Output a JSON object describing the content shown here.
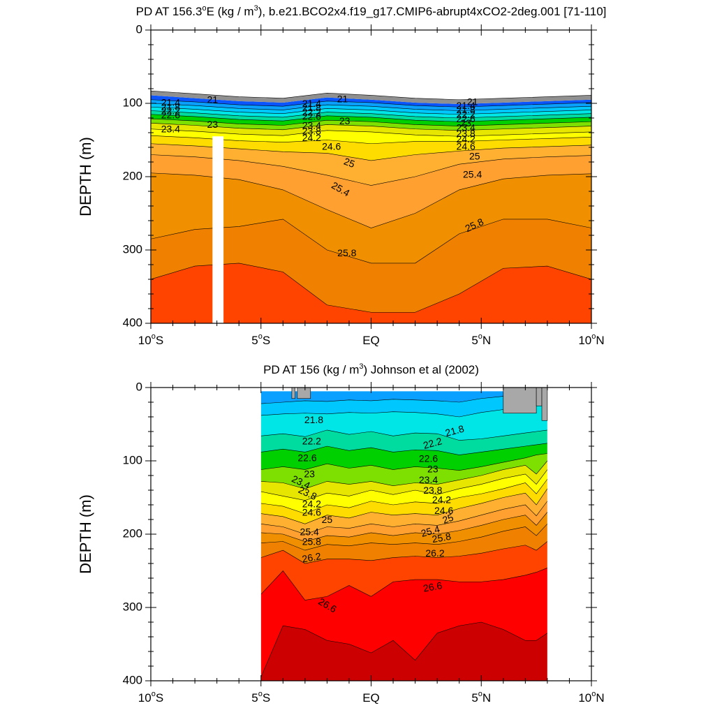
{
  "chart_data": [
    {
      "type": "contour",
      "title_parts": [
        "PD AT 156.3",
        "o",
        "E (kg / m",
        "3",
        "), b.e21.BCO2x4.f19_g17.CMIP6-abrupt4xCO2-2deg.001 [71-110]"
      ],
      "ylabel": "DEPTH (m)",
      "xlabel": "",
      "xlim": [
        -10,
        10
      ],
      "ylim": [
        400,
        0
      ],
      "y_inverted": true,
      "y_ticks": [
        "0",
        "100",
        "200",
        "300",
        "400"
      ],
      "x_ticks": [
        {
          "pos": -10,
          "main": "10",
          "sup": "o",
          "tail": "S"
        },
        {
          "pos": -5,
          "main": "5",
          "sup": "o",
          "tail": "S"
        },
        {
          "pos": 0,
          "main": "EQ",
          "sup": "",
          "tail": ""
        },
        {
          "pos": 5,
          "main": "5",
          "sup": "o",
          "tail": "N"
        },
        {
          "pos": 10,
          "main": "10",
          "sup": "o",
          "tail": "N"
        }
      ],
      "x": [
        -10,
        -8,
        -6,
        -4,
        -2,
        0,
        2,
        4,
        6,
        8,
        10
      ],
      "surface_depth": [
        89,
        93,
        97,
        99,
        92,
        95,
        99,
        101,
        99,
        97,
        95
      ],
      "missing_column_x": [
        -7.2,
        -6.7
      ],
      "missing_column_top_depth": 145,
      "contours": [
        {
          "level": 21.0,
          "depth": [
            95,
            98,
            102,
            104,
            97,
            99,
            103,
            105,
            103,
            101,
            99
          ]
        },
        {
          "level": 21.4,
          "depth": [
            100,
            103,
            107,
            109,
            102,
            104,
            108,
            110,
            108,
            106,
            104
          ]
        },
        {
          "level": 21.8,
          "depth": [
            105,
            108,
            112,
            114,
            107,
            109,
            113,
            115,
            113,
            111,
            109
          ]
        },
        {
          "level": 22.2,
          "depth": [
            110,
            113,
            117,
            119,
            112,
            114,
            118,
            120,
            118,
            116,
            114
          ]
        },
        {
          "level": 22.6,
          "depth": [
            115,
            118,
            122,
            124,
            117,
            119,
            123,
            125,
            123,
            121,
            119
          ]
        },
        {
          "level": 23.0,
          "depth": [
            121,
            124,
            128,
            130,
            123,
            125,
            129,
            131,
            129,
            127,
            125
          ]
        },
        {
          "level": 23.4,
          "depth": [
            127,
            130,
            134,
            136,
            129,
            131,
            135,
            137,
            135,
            133,
            131
          ]
        },
        {
          "level": 23.8,
          "depth": [
            135,
            138,
            142,
            144,
            137,
            139,
            143,
            145,
            143,
            141,
            139
          ]
        },
        {
          "level": 24.2,
          "depth": [
            144,
            147,
            151,
            153,
            150,
            155,
            152,
            152,
            150,
            148,
            146
          ]
        },
        {
          "level": 24.6,
          "depth": [
            155,
            158,
            162,
            166,
            168,
            178,
            170,
            165,
            161,
            159,
            157
          ]
        },
        {
          "level": 25.0,
          "depth": [
            170,
            173,
            178,
            186,
            198,
            212,
            200,
            183,
            176,
            173,
            171
          ]
        },
        {
          "level": 25.4,
          "depth": [
            195,
            198,
            204,
            218,
            245,
            270,
            250,
            218,
            203,
            198,
            196
          ]
        },
        {
          "level": 25.8,
          "depth": [
            285,
            272,
            268,
            258,
            300,
            318,
            318,
            278,
            258,
            258,
            270
          ]
        },
        {
          "level": 26.2,
          "depth": [
            340,
            322,
            318,
            330,
            375,
            385,
            385,
            360,
            325,
            322,
            340
          ]
        }
      ],
      "labels": [
        {
          "text": "21",
          "x": -7.2,
          "d": 96,
          "rot": 0
        },
        {
          "text": "21.4",
          "x": -9.1,
          "d": 100,
          "rot": 0
        },
        {
          "text": "21.8",
          "x": -9.1,
          "d": 106,
          "rot": 0
        },
        {
          "text": "22.2",
          "x": -9.1,
          "d": 111,
          "rot": 0
        },
        {
          "text": "22.6",
          "x": -9.1,
          "d": 117,
          "rot": 0
        },
        {
          "text": "23",
          "x": -7.2,
          "d": 130,
          "rot": 0
        },
        {
          "text": "23.4",
          "x": -9.1,
          "d": 136,
          "rot": 0
        },
        {
          "text": "21",
          "x": -1.3,
          "d": 95,
          "rot": 0
        },
        {
          "text": "21.4",
          "x": -2.7,
          "d": 101,
          "rot": 0
        },
        {
          "text": "21.8",
          "x": -2.7,
          "d": 107,
          "rot": 0
        },
        {
          "text": "22.2",
          "x": -2.7,
          "d": 113,
          "rot": 0
        },
        {
          "text": "22.6",
          "x": -2.7,
          "d": 119,
          "rot": 0
        },
        {
          "text": "23",
          "x": -1.2,
          "d": 125,
          "rot": 0
        },
        {
          "text": "23.4",
          "x": -2.7,
          "d": 131,
          "rot": 0
        },
        {
          "text": "23.8",
          "x": -2.7,
          "d": 139,
          "rot": 0
        },
        {
          "text": "24.2",
          "x": -2.7,
          "d": 148,
          "rot": 0
        },
        {
          "text": "24.6",
          "x": -1.8,
          "d": 160,
          "rot": 0
        },
        {
          "text": "25",
          "x": -1.0,
          "d": 182,
          "rot": 20
        },
        {
          "text": "25.4",
          "x": -1.4,
          "d": 218,
          "rot": 30
        },
        {
          "text": "25.8",
          "x": -1.1,
          "d": 305,
          "rot": 0
        },
        {
          "text": "21",
          "x": 4.6,
          "d": 99,
          "rot": 0
        },
        {
          "text": "21.4",
          "x": 4.3,
          "d": 104,
          "rot": 0
        },
        {
          "text": "21.8",
          "x": 4.3,
          "d": 110,
          "rot": 0
        },
        {
          "text": "22.2",
          "x": 4.3,
          "d": 116,
          "rot": 0
        },
        {
          "text": "22.6",
          "x": 4.3,
          "d": 122,
          "rot": 0
        },
        {
          "text": "23",
          "x": 4.3,
          "d": 128,
          "rot": 0
        },
        {
          "text": "23.4",
          "x": 4.3,
          "d": 134,
          "rot": 0
        },
        {
          "text": "23.8",
          "x": 4.3,
          "d": 142,
          "rot": 0
        },
        {
          "text": "24.2",
          "x": 4.3,
          "d": 150,
          "rot": 0
        },
        {
          "text": "24.6",
          "x": 4.3,
          "d": 160,
          "rot": 0
        },
        {
          "text": "25",
          "x": 4.7,
          "d": 173,
          "rot": 0
        },
        {
          "text": "25.4",
          "x": 4.6,
          "d": 198,
          "rot": 0
        },
        {
          "text": "25.8",
          "x": 4.7,
          "d": 267,
          "rot": -25
        }
      ]
    },
    {
      "type": "contour",
      "title_parts": [
        "PD AT 156 (kg / m",
        "3",
        ") Johnson et al (2002)"
      ],
      "ylabel": "DEPTH (m)",
      "xlabel": "",
      "xlim": [
        -10,
        10
      ],
      "ylim": [
        400,
        0
      ],
      "y_inverted": true,
      "y_ticks": [
        "0",
        "100",
        "200",
        "300",
        "400"
      ],
      "x_ticks": [
        {
          "pos": -10,
          "main": "10",
          "sup": "o",
          "tail": "S"
        },
        {
          "pos": -5,
          "main": "5",
          "sup": "o",
          "tail": "S"
        },
        {
          "pos": 0,
          "main": "EQ",
          "sup": "",
          "tail": ""
        },
        {
          "pos": 5,
          "main": "5",
          "sup": "o",
          "tail": "N"
        },
        {
          "pos": 10,
          "main": "10",
          "sup": "o",
          "tail": "N"
        }
      ],
      "data_xlim": [
        -5,
        8
      ],
      "data_top_depth": 5,
      "x": [
        -5,
        -4,
        -3,
        -2,
        -1,
        0,
        1,
        2,
        3,
        4,
        5,
        6,
        7,
        7.5,
        8
      ],
      "contours": [
        {
          "level": 21.4,
          "depth": [
            22,
            20,
            18,
            19,
            17,
            18,
            16,
            17,
            18,
            20,
            15,
            12,
            10,
            8,
            6
          ]
        },
        {
          "level": 21.8,
          "depth": [
            38,
            36,
            35,
            36,
            34,
            35,
            33,
            34,
            36,
            40,
            34,
            30,
            25,
            22,
            20
          ]
        },
        {
          "level": 22.2,
          "depth": [
            66,
            63,
            67,
            58,
            64,
            60,
            66,
            62,
            63,
            72,
            70,
            66,
            62,
            60,
            58
          ]
        },
        {
          "level": 22.6,
          "depth": [
            88,
            84,
            88,
            80,
            86,
            82,
            88,
            85,
            86,
            92,
            88,
            84,
            80,
            78,
            76
          ]
        },
        {
          "level": 23.0,
          "depth": [
            112,
            108,
            112,
            104,
            110,
            106,
            112,
            108,
            110,
            113,
            108,
            102,
            96,
            92,
            90
          ]
        },
        {
          "level": 23.4,
          "depth": [
            128,
            130,
            138,
            128,
            132,
            128,
            134,
            130,
            132,
            126,
            120,
            112,
            106,
            118,
            100
          ]
        },
        {
          "level": 23.8,
          "depth": [
            142,
            148,
            154,
            144,
            148,
            140,
            146,
            140,
            146,
            138,
            132,
            124,
            118,
            132,
            112
          ]
        },
        {
          "level": 24.2,
          "depth": [
            158,
            162,
            172,
            160,
            164,
            155,
            160,
            156,
            158,
            150,
            145,
            138,
            130,
            145,
            125
          ]
        },
        {
          "level": 24.6,
          "depth": [
            172,
            176,
            186,
            174,
            178,
            170,
            174,
            172,
            174,
            165,
            158,
            150,
            144,
            160,
            138
          ]
        },
        {
          "level": 25.0,
          "depth": [
            186,
            190,
            200,
            190,
            192,
            186,
            190,
            186,
            188,
            182,
            174,
            166,
            160,
            175,
            155
          ]
        },
        {
          "level": 25.4,
          "depth": [
            198,
            200,
            210,
            202,
            204,
            198,
            202,
            198,
            200,
            195,
            188,
            180,
            174,
            188,
            170
          ]
        },
        {
          "level": 25.8,
          "depth": [
            212,
            210,
            222,
            214,
            216,
            212,
            214,
            212,
            214,
            210,
            204,
            196,
            190,
            202,
            186
          ]
        },
        {
          "level": 26.2,
          "depth": [
            232,
            222,
            240,
            234,
            234,
            236,
            232,
            230,
            232,
            230,
            226,
            220,
            215,
            222,
            210
          ]
        },
        {
          "level": 26.6,
          "depth": [
            282,
            250,
            290,
            285,
            270,
            285,
            265,
            262,
            262,
            265,
            265,
            262,
            256,
            252,
            246
          ]
        },
        {
          "level": 27.0,
          "depth": [
            395,
            325,
            330,
            345,
            350,
            362,
            345,
            372,
            335,
            325,
            320,
            330,
            345,
            345,
            335
          ]
        }
      ],
      "surface_gray": [
        {
          "x": [
            6.0,
            7.5
          ],
          "depth_max": 35
        },
        {
          "x": [
            7.5,
            7.75
          ],
          "depth_max": 25
        },
        {
          "x": [
            7.75,
            8.0
          ],
          "depth_max": 45
        },
        {
          "x": [
            -3.6,
            -3.45
          ],
          "depth_max": 15
        },
        {
          "x": [
            -3.35,
            -2.75
          ],
          "depth_max": 15
        }
      ],
      "labels": [
        {
          "text": "21.8",
          "x": -2.6,
          "d": 45,
          "rot": 0
        },
        {
          "text": "21.8",
          "x": 3.8,
          "d": 60,
          "rot": -15
        },
        {
          "text": "22.2",
          "x": -2.7,
          "d": 74,
          "rot": 0
        },
        {
          "text": "22.2",
          "x": 2.8,
          "d": 77,
          "rot": -15
        },
        {
          "text": "22.6",
          "x": -2.9,
          "d": 97,
          "rot": 0
        },
        {
          "text": "22.6",
          "x": 2.6,
          "d": 98,
          "rot": 0
        },
        {
          "text": "23",
          "x": -2.8,
          "d": 119,
          "rot": 0
        },
        {
          "text": "23",
          "x": 2.8,
          "d": 112,
          "rot": 0
        },
        {
          "text": "23.4",
          "x": -3.2,
          "d": 130,
          "rot": 25
        },
        {
          "text": "23.4",
          "x": 2.6,
          "d": 127,
          "rot": 0
        },
        {
          "text": "23.8",
          "x": -2.9,
          "d": 145,
          "rot": 25
        },
        {
          "text": "23.8",
          "x": 2.8,
          "d": 141,
          "rot": 0
        },
        {
          "text": "24.2",
          "x": -2.7,
          "d": 160,
          "rot": 0
        },
        {
          "text": "24.2",
          "x": 3.2,
          "d": 154,
          "rot": 0
        },
        {
          "text": "24.6",
          "x": -2.7,
          "d": 171,
          "rot": 0
        },
        {
          "text": "24.6",
          "x": 3.3,
          "d": 169,
          "rot": 0
        },
        {
          "text": "25",
          "x": -2.0,
          "d": 181,
          "rot": 0
        },
        {
          "text": "25",
          "x": 3.5,
          "d": 180,
          "rot": -20
        },
        {
          "text": "25.4",
          "x": -2.8,
          "d": 198,
          "rot": 0
        },
        {
          "text": "25.4",
          "x": 2.7,
          "d": 197,
          "rot": -15
        },
        {
          "text": "25.8",
          "x": -2.7,
          "d": 211,
          "rot": 0
        },
        {
          "text": "25.8",
          "x": 3.2,
          "d": 206,
          "rot": -10
        },
        {
          "text": "26.2",
          "x": -2.7,
          "d": 233,
          "rot": -10
        },
        {
          "text": "26.2",
          "x": 2.9,
          "d": 227,
          "rot": 0
        },
        {
          "text": "26.6",
          "x": -2.0,
          "d": 298,
          "rot": 30
        },
        {
          "text": "26.6",
          "x": 2.8,
          "d": 273,
          "rot": -10
        }
      ]
    }
  ],
  "shared": {
    "levels": [
      20.6,
      21.0,
      21.4,
      21.8,
      22.2,
      22.6,
      23.0,
      23.4,
      23.8,
      24.2,
      24.6,
      25.0,
      25.4,
      25.8,
      26.2,
      26.6,
      27.0
    ],
    "colors": [
      "#ff00ff",
      "#dd00ff",
      "#a000ff",
      "#5a00ff",
      "#0000ff",
      "#0a55ff",
      "#0aa0ff",
      "#00c8ff",
      "#00e6e6",
      "#00dca0",
      "#00d000",
      "#7ee000",
      "#e6e600",
      "#ffff00",
      "#ffdc00",
      "#ffb030",
      "#ffa030",
      "#f09000",
      "#f08000",
      "#ff4400",
      "#ff0000",
      "#cc0000"
    ],
    "missing_color": "#a8a8a8",
    "surface_gray_color": "#909090",
    "line_color": "#000000"
  }
}
